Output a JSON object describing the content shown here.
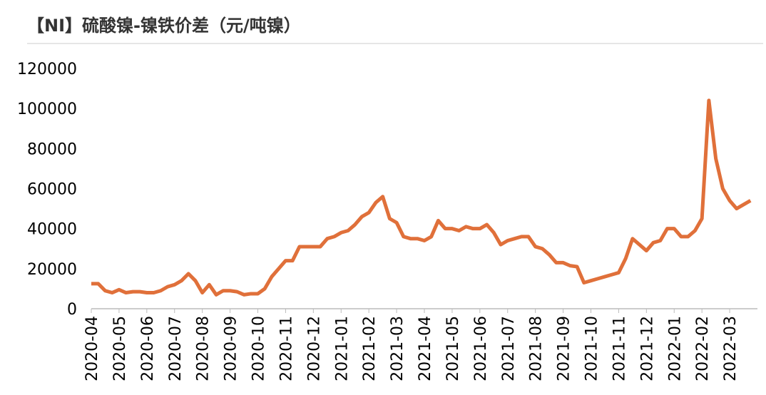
{
  "chart_data": {
    "type": "line",
    "title": "【NI】硫酸镍-镍铁价差（元/吨镍）",
    "categories": [
      "2020-04",
      null,
      null,
      null,
      "2020-05",
      null,
      null,
      null,
      "2020-06",
      null,
      null,
      null,
      "2020-07",
      null,
      null,
      null,
      "2020-08",
      null,
      null,
      null,
      "2020-09",
      null,
      null,
      null,
      "2020-10",
      null,
      null,
      null,
      "2020-11",
      null,
      null,
      null,
      "2020-12",
      null,
      null,
      null,
      "2021-01",
      null,
      null,
      null,
      "2021-02",
      null,
      null,
      null,
      "2021-03",
      null,
      null,
      null,
      "2021-04",
      null,
      null,
      null,
      "2021-05",
      null,
      null,
      null,
      "2021-06",
      null,
      null,
      null,
      "2021-07",
      null,
      null,
      null,
      "2021-08",
      null,
      null,
      null,
      "2021-09",
      null,
      null,
      null,
      "2021-10",
      null,
      null,
      null,
      "2021-11",
      null,
      null,
      null,
      "2021-12",
      null,
      null,
      null,
      "2022-01",
      null,
      null,
      null,
      "2022-02",
      null,
      null,
      null,
      "2022-03",
      null,
      null,
      null
    ],
    "series": [
      {
        "color": "#e0703a",
        "values": [
          12500,
          12500,
          9000,
          8000,
          9500,
          8000,
          8500,
          8500,
          8000,
          8000,
          9000,
          11000,
          12000,
          14000,
          17500,
          14000,
          8000,
          12000,
          7000,
          9000,
          9000,
          8500,
          7000,
          7500,
          7500,
          10000,
          16000,
          20000,
          24000,
          24000,
          31000,
          31000,
          31000,
          31000,
          35000,
          36000,
          38000,
          39000,
          42000,
          46000,
          48000,
          53000,
          56000,
          45000,
          43000,
          36000,
          35000,
          35000,
          34000,
          36000,
          44000,
          40000,
          40000,
          39000,
          41000,
          40000,
          40000,
          42000,
          38000,
          32000,
          34000,
          35000,
          36000,
          36000,
          31000,
          30000,
          27000,
          23000,
          23000,
          21500,
          21000,
          13000,
          14000,
          15000,
          16000,
          17000,
          18000,
          25000,
          35000,
          32000,
          29000,
          33000,
          34000,
          40000,
          40000,
          36000,
          36000,
          39000,
          45000,
          104000,
          75000,
          60000,
          54000,
          50000,
          52000,
          54000
        ]
      }
    ],
    "ylim": [
      0,
      120000
    ],
    "yticks": [
      0,
      20000,
      40000,
      60000,
      80000,
      100000,
      120000
    ],
    "grid": false
  }
}
